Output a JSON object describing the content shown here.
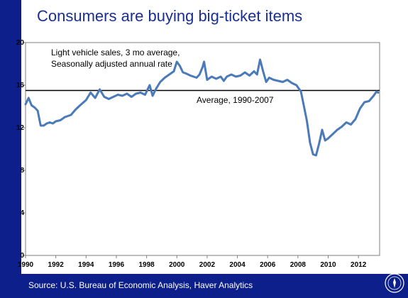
{
  "slide": {
    "title": "Consumers are buying big-ticket items",
    "source": "Source: U.S. Bureau of Economic Analysis, Haver Analytics",
    "colors": {
      "background_bar": "#0d1f8a",
      "title": "#1a2f8f",
      "series": "#4a7ab8"
    },
    "logo": "federal-reserve-seal"
  },
  "chart_data": {
    "type": "line",
    "annotation": "Light vehicle sales, 3 mo average,\nSeasonally adjusted annual rate",
    "ylim": [
      0,
      20
    ],
    "yticks": [
      0,
      4,
      8,
      12,
      16,
      20
    ],
    "xlim": [
      1990,
      2013.4
    ],
    "xticks": [
      1990,
      1992,
      1994,
      1996,
      1998,
      2000,
      2002,
      2004,
      2006,
      2008,
      2010,
      2012
    ],
    "grid": false,
    "reference_line": {
      "value": 15.5,
      "label": "Average, 1990-2007"
    },
    "series": [
      {
        "x": [
          1990.0,
          1990.2,
          1990.4,
          1990.6,
          1990.8,
          1991.0,
          1991.2,
          1991.4,
          1991.6,
          1991.8,
          1992.0,
          1992.3,
          1992.6,
          1993.0,
          1993.3,
          1993.6,
          1994.0,
          1994.3,
          1994.6,
          1994.9,
          1995.2,
          1995.5,
          1995.8,
          1996.1,
          1996.4,
          1996.7,
          1997.0,
          1997.3,
          1997.6,
          1997.9,
          1998.2,
          1998.4,
          1998.6,
          1998.9,
          1999.2,
          1999.5,
          1999.8,
          2000.0,
          2000.2,
          2000.4,
          2000.6,
          2000.9,
          2001.1,
          2001.3,
          2001.5,
          2001.7,
          2001.8,
          2002.0,
          2002.3,
          2002.6,
          2002.9,
          2003.1,
          2003.3,
          2003.6,
          2003.9,
          2004.2,
          2004.5,
          2004.8,
          2005.1,
          2005.3,
          2005.5,
          2005.7,
          2005.9,
          2006.1,
          2006.4,
          2006.7,
          2007.0,
          2007.3,
          2007.6,
          2007.9,
          2008.2,
          2008.4,
          2008.6,
          2008.8,
          2009.0,
          2009.2,
          2009.4,
          2009.6,
          2009.8,
          2010.0,
          2010.3,
          2010.6,
          2010.9,
          2011.2,
          2011.5,
          2011.8,
          2012.1,
          2012.4,
          2012.7,
          2013.0,
          2013.2,
          2013.3
        ],
        "y": [
          14.2,
          14.8,
          14.1,
          13.9,
          13.6,
          12.2,
          12.2,
          12.4,
          12.5,
          12.4,
          12.6,
          12.7,
          13.0,
          13.2,
          13.7,
          14.1,
          14.6,
          15.3,
          14.8,
          15.6,
          14.9,
          14.7,
          14.9,
          15.1,
          15.0,
          15.2,
          14.9,
          15.2,
          15.3,
          15.1,
          16.0,
          15.0,
          15.6,
          16.3,
          16.7,
          17.0,
          17.3,
          18.2,
          17.8,
          17.2,
          17.1,
          16.9,
          16.8,
          16.7,
          17.0,
          17.7,
          18.2,
          16.5,
          16.8,
          16.6,
          16.8,
          16.4,
          16.8,
          17.0,
          16.8,
          16.9,
          17.2,
          16.9,
          17.3,
          17.0,
          18.4,
          17.3,
          16.3,
          16.7,
          16.5,
          16.4,
          16.3,
          16.5,
          16.2,
          16.0,
          15.4,
          14.0,
          12.6,
          10.6,
          9.5,
          9.4,
          10.5,
          11.8,
          10.8,
          11.0,
          11.4,
          11.8,
          12.1,
          12.5,
          12.3,
          12.8,
          13.8,
          14.4,
          14.5,
          15.0,
          15.4,
          15.3
        ]
      }
    ]
  }
}
